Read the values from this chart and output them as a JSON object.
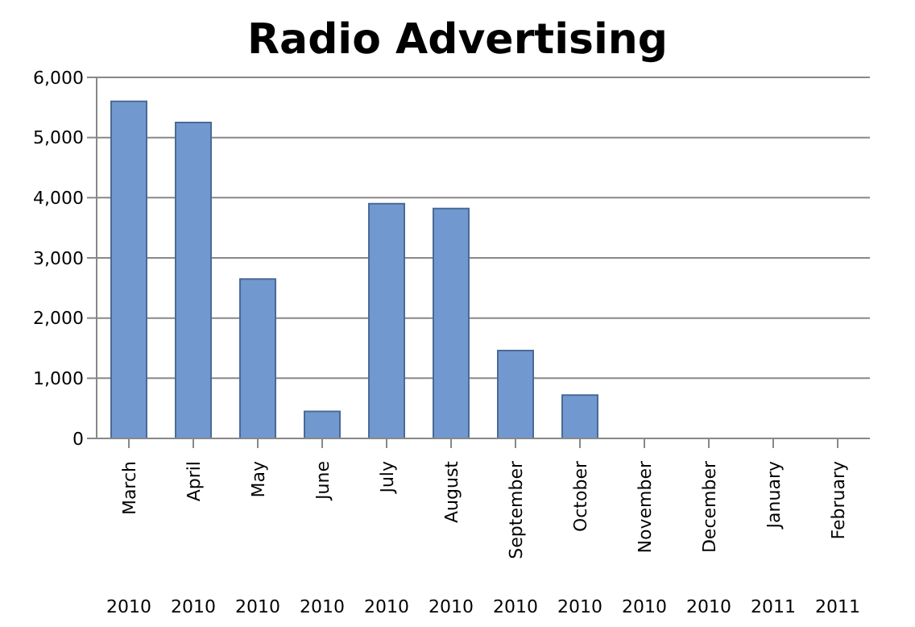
{
  "chart_data": {
    "type": "bar",
    "title": "Radio Advertising",
    "categories": [
      "March 2010",
      "April 2010",
      "May 2010",
      "June 2010",
      "July 2010",
      "August 2010",
      "September 2010",
      "October 2010",
      "November 2010",
      "December 2010",
      "January 2011",
      "February 2011"
    ],
    "values": [
      5600,
      5250,
      2650,
      450,
      3900,
      3820,
      1460,
      720,
      0,
      0,
      0,
      0
    ],
    "color": "#7199d0",
    "ylim": [
      0,
      6000
    ],
    "yticks": [
      {
        "value": 0,
        "label": "0"
      },
      {
        "value": 1000,
        "label": "1,000"
      },
      {
        "value": 2000,
        "label": "2,000"
      },
      {
        "value": 3000,
        "label": "3,000"
      },
      {
        "value": 4000,
        "label": "4,000"
      },
      {
        "value": 5000,
        "label": "5,000"
      },
      {
        "value": 6000,
        "label": "6,000"
      }
    ],
    "grid": "y"
  }
}
